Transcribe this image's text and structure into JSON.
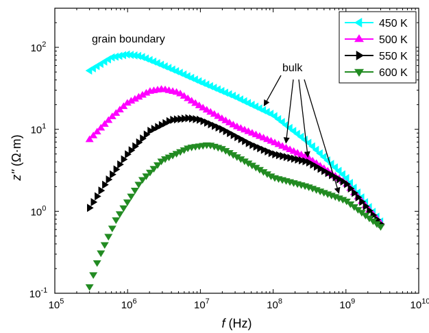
{
  "chart_data": {
    "type": "scatter",
    "x_scale": "log",
    "y_scale": "log",
    "xlim": [
      100000,
      10000000000
    ],
    "ylim": [
      0.1,
      300
    ],
    "x_ticks": [
      100000,
      1000000,
      10000000,
      100000000,
      1000000000,
      10000000000
    ],
    "y_ticks": [
      0.1,
      1,
      10,
      100
    ],
    "x_tick_labels": [
      {
        "base": "10",
        "exp": "5"
      },
      {
        "base": "10",
        "exp": "6"
      },
      {
        "base": "10",
        "exp": "7"
      },
      {
        "base": "10",
        "exp": "8"
      },
      {
        "base": "10",
        "exp": "9"
      },
      {
        "base": "10",
        "exp": "10"
      }
    ],
    "y_tick_labels": [
      {
        "base": "10",
        "exp": "-1"
      },
      {
        "base": "10",
        "exp": "0"
      },
      {
        "base": "10",
        "exp": "1"
      },
      {
        "base": "10",
        "exp": "2"
      }
    ],
    "xlabel": {
      "italic": "f",
      "rest": " (Hz)"
    },
    "ylabel": {
      "italic": "z''",
      "rest": " (Ω·m)"
    },
    "legend_position": "top-right",
    "annotations": {
      "grain_boundary": "grain boundary",
      "bulk": "bulk"
    },
    "series": [
      {
        "name": "450 K",
        "color": "#00ffff",
        "marker": "triangle-left",
        "curve": [
          [
            300000,
            52
          ],
          [
            600000,
            75
          ],
          [
            1000000,
            82
          ],
          [
            1500000,
            78
          ],
          [
            2500000,
            65
          ],
          [
            5000000,
            50
          ],
          [
            10000000,
            38
          ],
          [
            30000000,
            25
          ],
          [
            100000000,
            15
          ],
          [
            300000000,
            7
          ],
          [
            1000000000,
            2.6
          ],
          [
            3000000000,
            0.75
          ]
        ]
      },
      {
        "name": "500 K",
        "color": "#ff00ff",
        "marker": "triangle-up",
        "curve": [
          [
            300000,
            7.5
          ],
          [
            600000,
            14
          ],
          [
            1000000,
            21
          ],
          [
            2000000,
            29
          ],
          [
            3000000,
            31
          ],
          [
            5000000,
            28
          ],
          [
            10000000,
            19
          ],
          [
            30000000,
            11
          ],
          [
            100000000,
            7
          ],
          [
            300000000,
            4.5
          ],
          [
            1000000000,
            2.2
          ],
          [
            3000000000,
            0.72
          ]
        ]
      },
      {
        "name": "550 K",
        "color": "#000000",
        "marker": "triangle-right",
        "curve": [
          [
            300000,
            1.1
          ],
          [
            500000,
            2.2
          ],
          [
            1000000,
            5
          ],
          [
            2000000,
            9.5
          ],
          [
            4000000,
            13
          ],
          [
            7000000,
            13.7
          ],
          [
            10000000,
            13
          ],
          [
            20000000,
            10
          ],
          [
            50000000,
            6.5
          ],
          [
            100000000,
            5
          ],
          [
            300000000,
            4
          ],
          [
            1000000000,
            2.2
          ],
          [
            3000000000,
            0.7
          ]
        ]
      },
      {
        "name": "600 K",
        "color": "#228b22",
        "marker": "triangle-down",
        "curve": [
          [
            300000,
            0.12
          ],
          [
            400000,
            0.27
          ],
          [
            700000,
            0.8
          ],
          [
            1500000,
            2.3
          ],
          [
            3000000,
            4.2
          ],
          [
            7000000,
            6
          ],
          [
            13000000,
            6.5
          ],
          [
            20000000,
            5.8
          ],
          [
            50000000,
            3.7
          ],
          [
            100000000,
            2.6
          ],
          [
            300000000,
            2
          ],
          [
            1000000000,
            1.35
          ],
          [
            3000000000,
            0.65
          ]
        ]
      }
    ]
  }
}
